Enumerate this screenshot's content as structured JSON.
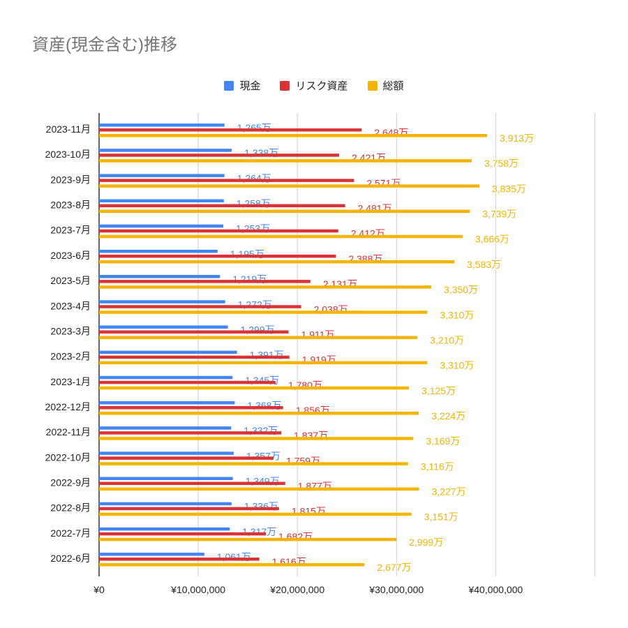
{
  "chart_data": {
    "type": "bar",
    "orientation": "horizontal",
    "title": "資産(現金含む)推移",
    "categories": [
      "2023-11月",
      "2023-10月",
      "2023-9月",
      "2023-8月",
      "2023-7月",
      "2023-6月",
      "2023-5月",
      "2023-4月",
      "2023-3月",
      "2023-2月",
      "2023-1月",
      "2022-12月",
      "2022-11月",
      "2022-10月",
      "2022-9月",
      "2022-8月",
      "2022-7月",
      "2022-6月"
    ],
    "series": [
      {
        "name": "現金",
        "color": "#4285f4",
        "values": [
          1265,
          1338,
          1264,
          1258,
          1253,
          1195,
          1219,
          1272,
          1299,
          1391,
          1345,
          1368,
          1332,
          1357,
          1349,
          1336,
          1317,
          1061
        ],
        "labels": [
          "1,265万",
          "1,338万",
          "1,264万",
          "1,258万",
          "1,253万",
          "1,195万",
          "1,219万",
          "1,272万",
          "1,299万",
          "1,391万",
          "1,345万",
          "1,368万",
          "1,332万",
          "1,357万",
          "1,349万",
          "1,336万",
          "1,317万",
          "1,061万"
        ]
      },
      {
        "name": "リスク資産",
        "color": "#db3236",
        "values": [
          2648,
          2421,
          2571,
          2481,
          2412,
          2388,
          2131,
          2038,
          1911,
          1919,
          1780,
          1856,
          1837,
          1759,
          1877,
          1815,
          1682,
          1616
        ],
        "labels": [
          "2,648万",
          "2,421万",
          "2,571万",
          "2,481万",
          "2,412万",
          "2,388万",
          "2,131万",
          "2,038万",
          "1,911万",
          "1,919万",
          "1,780万",
          "1,856万",
          "1,837万",
          "1,759万",
          "1,877万",
          "1,815万",
          "1,682万",
          "1,616万"
        ]
      },
      {
        "name": "総額",
        "color": "#f4b400",
        "values": [
          3913,
          3758,
          3835,
          3739,
          3666,
          3583,
          3350,
          3310,
          3210,
          3310,
          3125,
          3224,
          3169,
          3116,
          3227,
          3151,
          2999,
          2677
        ],
        "labels": [
          "3,913万",
          "3,758万",
          "3,835万",
          "3,739万",
          "3,666万",
          "3,583万",
          "3,350万",
          "3,310万",
          "3,210万",
          "3,310万",
          "3,125万",
          "3,224万",
          "3,169万",
          "3,116万",
          "3,227万",
          "3,151万",
          "2,999万",
          "2,677万"
        ]
      }
    ],
    "value_unit": "万円",
    "xlim": [
      0,
      50000000
    ],
    "xticks": [
      0,
      10000000,
      20000000,
      30000000,
      40000000,
      50000000
    ],
    "xtick_labels": [
      "¥0",
      "¥10,000,000",
      "¥20,000,000",
      "¥30,000,000",
      "¥40,000,000",
      ""
    ],
    "grid": true,
    "legend_position": "top"
  }
}
